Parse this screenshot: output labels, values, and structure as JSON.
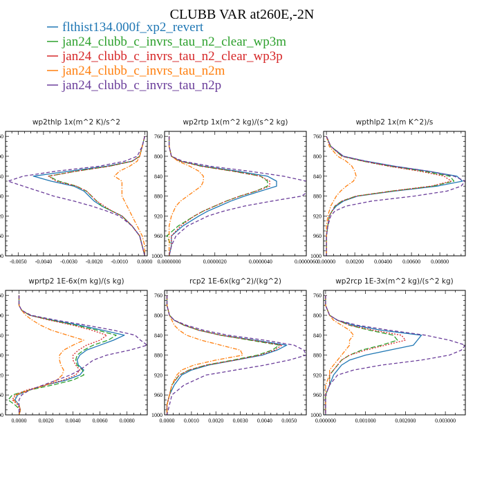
{
  "title": "CLUBB VAR at260E,-2N",
  "legend": [
    {
      "label": "flthist134.000f_xp2_revert",
      "color": "#1f77b4",
      "dash": "solid"
    },
    {
      "label": "jan24_clubb_c_invrs_tau_n2_clear_wp3m",
      "color": "#2ca02c",
      "dash": "longdash"
    },
    {
      "label": "jan24_clubb_c_invrs_tau_n2_clear_wp3p",
      "color": "#d62728",
      "dash": "dot"
    },
    {
      "label": "jan24_clubb_c_invrs_tau_n2m",
      "color": "#ff7f0e",
      "dash": "dashdot"
    },
    {
      "label": "jan24_clubb_c_invrs_tau_n2p",
      "color": "#6a3d9a",
      "dash": "dash"
    }
  ],
  "chart_data": [
    {
      "type": "line",
      "title": "wp2thlp   1x(m^2 K)/s^2",
      "xlim": [
        -0.0055,
        0.0001
      ],
      "ylim": [
        1000,
        750
      ],
      "xticks": [
        "-0.0050",
        "-0.0040",
        "-0.0030",
        "-0.0020",
        "-0.0010",
        "0.0000"
      ],
      "xtick_values": [
        -0.005,
        -0.004,
        -0.003,
        -0.002,
        -0.001,
        0.0
      ],
      "yticks": [
        "760",
        "800",
        "840",
        "880",
        "920",
        "960",
        "1000"
      ],
      "ytick_values": [
        760,
        800,
        840,
        880,
        920,
        960,
        1000
      ],
      "y": [
        760,
        780,
        800,
        810,
        820,
        830,
        840,
        850,
        860,
        870,
        880,
        890,
        900,
        910,
        920,
        940,
        960,
        980,
        1000
      ],
      "series": [
        {
          "values": [
            0,
            -0.0001,
            -0.0002,
            -0.0005,
            -0.0015,
            -0.003,
            -0.0044,
            -0.0037,
            -0.0028,
            -0.0024,
            -0.0022,
            -0.002,
            -0.0017,
            -0.0013,
            -0.0009,
            -0.0005,
            -0.0002,
            -0.0001,
            0
          ]
        },
        {
          "values": [
            0,
            -0.0001,
            -0.0002,
            -0.0005,
            -0.0014,
            -0.0027,
            -0.0038,
            -0.0034,
            -0.0027,
            -0.0023,
            -0.0021,
            -0.0019,
            -0.0017,
            -0.0013,
            -0.0009,
            -0.0005,
            -0.0002,
            -0.0001,
            0
          ]
        },
        {
          "values": [
            0,
            -0.0001,
            -0.0002,
            -0.0005,
            -0.0014,
            -0.0027,
            -0.0038,
            -0.0035,
            -0.0027,
            -0.0023,
            -0.0021,
            -0.0019,
            -0.0016,
            -0.0013,
            -0.0009,
            -0.0005,
            -0.0002,
            -0.0001,
            0
          ]
        },
        {
          "values": [
            0,
            -0.0001,
            -0.0002,
            -0.0003,
            -0.0006,
            -0.001,
            -0.0012,
            -0.0009,
            -0.0009,
            -0.0009,
            -0.0009,
            -0.0008,
            -0.0007,
            -0.0006,
            -0.0005,
            -0.0003,
            -0.0001,
            0,
            0
          ]
        },
        {
          "values": [
            0,
            -0.0001,
            -0.0003,
            -0.0008,
            -0.0018,
            -0.0035,
            -0.0048,
            -0.0054,
            -0.0048,
            -0.0042,
            -0.0036,
            -0.0028,
            -0.0021,
            -0.0015,
            -0.001,
            -0.0005,
            -0.0002,
            -0.0001,
            0
          ]
        }
      ]
    },
    {
      "type": "line",
      "title": "wp2rtp   1x(m^2 kg)/(s^2 kg)",
      "xlim": [
        -2e-07,
        6e-06
      ],
      "ylim": [
        1000,
        750
      ],
      "xticks": [
        "0.0000000",
        "0.0000020",
        "0.0000040",
        "0.0000060"
      ],
      "xtick_values": [
        0.0,
        2e-06,
        4e-06,
        6e-06
      ],
      "yticks": [
        "760",
        "800",
        "840",
        "880",
        "920",
        "960",
        "1000"
      ],
      "ytick_values": [
        760,
        800,
        840,
        880,
        920,
        960,
        1000
      ],
      "y": [
        760,
        780,
        800,
        810,
        820,
        830,
        840,
        850,
        860,
        870,
        880,
        890,
        900,
        910,
        920,
        940,
        960,
        980,
        1000
      ],
      "series": [
        {
          "values": [
            0,
            0,
            1e-07,
            5e-07,
            1.5e-06,
            3e-06,
            4.3e-06,
            4.7e-06,
            4.7e-06,
            4e-06,
            3.3e-06,
            2.7e-06,
            2.2e-06,
            1.7e-06,
            1.3e-06,
            6e-07,
            1e-07,
            1e-07,
            0
          ]
        },
        {
          "values": [
            0,
            0,
            1e-07,
            5e-07,
            1.4e-06,
            2.8e-06,
            4e-06,
            4.3e-06,
            4.3e-06,
            3.8e-06,
            3.1e-06,
            2.5e-06,
            2e-06,
            1.5e-06,
            1.1e-06,
            4e-07,
            -1e-07,
            1e-07,
            0
          ]
        },
        {
          "values": [
            0,
            0,
            1e-07,
            5e-07,
            1.4e-06,
            2.8e-06,
            4e-06,
            4.4e-06,
            4.4e-06,
            3.8e-06,
            3.1e-06,
            2.5e-06,
            2e-06,
            1.5e-06,
            1.1e-06,
            5e-07,
            1e-07,
            1e-07,
            0
          ]
        },
        {
          "values": [
            0,
            0,
            1e-07,
            4e-07,
            9e-07,
            1.3e-06,
            1.5e-06,
            1.5e-06,
            1.4e-06,
            1.1e-06,
            8e-07,
            5e-07,
            3e-07,
            2e-07,
            1e-07,
            0,
            0,
            0,
            0
          ]
        },
        {
          "values": [
            0,
            0,
            1e-07,
            6e-07,
            1.8e-06,
            3.5e-06,
            5e-06,
            6e-06,
            6.3e-06,
            6.1e-06,
            5.8e-06,
            4.5e-06,
            3.3e-06,
            2.4e-06,
            1.7e-06,
            8e-07,
            3e-07,
            1e-07,
            0
          ]
        }
      ]
    },
    {
      "type": "line",
      "title": "wpthlp2   1x(m K^2)/s",
      "xlim": [
        -0.0002,
        0.0098
      ],
      "ylim": [
        1000,
        750
      ],
      "xticks": [
        "0.00000",
        "0.00200",
        "0.00400",
        "0.00600",
        "0.00800"
      ],
      "xtick_values": [
        0.0,
        0.002,
        0.004,
        0.006,
        0.008
      ],
      "yticks": [
        "760",
        "800",
        "840",
        "880",
        "920",
        "960",
        "1000"
      ],
      "ytick_values": [
        760,
        800,
        840,
        880,
        920,
        960,
        1000
      ],
      "y": [
        760,
        780,
        800,
        810,
        820,
        830,
        840,
        850,
        860,
        870,
        880,
        890,
        900,
        910,
        920,
        940,
        960,
        980,
        1000
      ],
      "series": [
        {
          "values": [
            0,
            0.0003,
            0.0012,
            0.0028,
            0.0048,
            0.0072,
            0.0092,
            0.0096,
            0.0078,
            0.0048,
            0.0022,
            0.0012,
            0.0007,
            0.0004,
            0.0002,
            0.0001,
            0,
            0,
            0
          ]
        },
        {
          "values": [
            0,
            0.0003,
            0.0011,
            0.0026,
            0.0045,
            0.0068,
            0.0087,
            0.009,
            0.0075,
            0.0046,
            0.0021,
            0.0011,
            0.0006,
            0.0004,
            0.0002,
            0.0001,
            0,
            0,
            0
          ]
        },
        {
          "values": [
            0,
            0.0003,
            0.0011,
            0.0026,
            0.0044,
            0.0066,
            0.0083,
            0.0088,
            0.0074,
            0.0046,
            0.0021,
            0.0011,
            0.0006,
            0.0004,
            0.0002,
            0.0001,
            0,
            0,
            0
          ]
        },
        {
          "values": [
            0,
            0.0002,
            0.0008,
            0.0014,
            0.0018,
            0.002,
            0.0021,
            0.0019,
            0.0014,
            0.001,
            0.0007,
            0.0005,
            0.0003,
            0.0002,
            0.0001,
            0,
            0,
            0,
            0
          ]
        },
        {
          "values": [
            0,
            0.0003,
            0.0012,
            0.0028,
            0.0048,
            0.0072,
            0.009,
            0.0098,
            0.0095,
            0.0085,
            0.0062,
            0.0032,
            0.0014,
            0.0006,
            0.0003,
            0.0001,
            0,
            0,
            0
          ]
        }
      ]
    },
    {
      "type": "line",
      "title": "wprtp2   1E-6x(m kg)/(s kg)",
      "xlim": [
        -0.001,
        0.0095
      ],
      "ylim": [
        1000,
        750
      ],
      "xticks": [
        "0.0000",
        "0.0020",
        "0.0040",
        "0.0060",
        "0.0080"
      ],
      "xtick_values": [
        0.0,
        0.002,
        0.004,
        0.006,
        0.008
      ],
      "yticks": [
        "760",
        "800",
        "840",
        "880",
        "920",
        "960",
        "1000"
      ],
      "ytick_values": [
        760,
        800,
        840,
        880,
        920,
        960,
        1000
      ],
      "y": [
        760,
        780,
        790,
        800,
        810,
        820,
        830,
        840,
        850,
        860,
        870,
        880,
        890,
        900,
        910,
        920,
        930,
        940,
        950,
        960,
        970,
        980,
        990,
        1000
      ],
      "series": [
        {
          "values": [
            0,
            0,
            0.0002,
            0.0008,
            0.0025,
            0.0045,
            0.0062,
            0.0078,
            0.007,
            0.006,
            0.005,
            0.0045,
            0.0043,
            0.0044,
            0.0048,
            0.0045,
            0.0035,
            0.002,
            0.0008,
            -0.0001,
            -0.0003,
            0,
            0.0001,
            0
          ]
        },
        {
          "values": [
            0,
            0,
            0.0002,
            0.0008,
            0.0024,
            0.0042,
            0.0058,
            0.0072,
            0.0066,
            0.0055,
            0.0048,
            0.0043,
            0.0042,
            0.0043,
            0.0047,
            0.0048,
            0.004,
            0.0025,
            0.0008,
            -0.0005,
            -0.0008,
            -0.0003,
            0.0001,
            0
          ]
        },
        {
          "values": [
            0,
            0,
            0.0002,
            0.0008,
            0.0023,
            0.004,
            0.0054,
            0.0065,
            0.006,
            0.005,
            0.0044,
            0.004,
            0.004,
            0.0042,
            0.0045,
            0.0042,
            0.0033,
            0.002,
            0.0006,
            -0.0003,
            -0.0005,
            -0.0001,
            0.0001,
            0
          ]
        },
        {
          "values": [
            0,
            0,
            0.0002,
            0.0005,
            0.001,
            0.0016,
            0.0024,
            0.0036,
            0.0048,
            0.004,
            0.0033,
            0.003,
            0.003,
            0.0031,
            0.0033,
            0.0032,
            0.0028,
            0.002,
            0.0008,
            -0.0002,
            -0.0004,
            0,
            0.0001,
            0
          ]
        },
        {
          "values": [
            0,
            0,
            0.0002,
            0.0009,
            0.0028,
            0.005,
            0.007,
            0.0086,
            0.009,
            0.0095,
            0.0082,
            0.0065,
            0.0055,
            0.005,
            0.0045,
            0.0038,
            0.0028,
            0.0018,
            0.0008,
            0.0002,
            0,
            0,
            0,
            0
          ]
        }
      ]
    },
    {
      "type": "line",
      "title": "rcp2   1E-6x(kg^2)/(kg^2)",
      "xlim": [
        -0.0001,
        0.0057
      ],
      "ylim": [
        1000,
        750
      ],
      "xticks": [
        "0.0000",
        "0.0010",
        "0.0020",
        "0.0030",
        "0.0040",
        "0.0050"
      ],
      "xtick_values": [
        0.0,
        0.001,
        0.002,
        0.003,
        0.004,
        0.005
      ],
      "yticks": [
        "760",
        "800",
        "840",
        "880",
        "920",
        "960",
        "1000"
      ],
      "ytick_values": [
        760,
        800,
        840,
        880,
        920,
        960,
        1000
      ],
      "y": [
        760,
        780,
        800,
        810,
        820,
        830,
        840,
        850,
        860,
        870,
        880,
        890,
        900,
        910,
        920,
        940,
        960,
        980,
        1000
      ],
      "series": [
        {
          "values": [
            0,
            0,
            0.0001,
            0.0003,
            0.0007,
            0.0013,
            0.0022,
            0.0036,
            0.0049,
            0.0045,
            0.0039,
            0.0028,
            0.0017,
            0.001,
            0.0006,
            0.0003,
            0.0001,
            0,
            0
          ]
        },
        {
          "values": [
            0,
            0,
            0.0001,
            0.0003,
            0.0007,
            0.0013,
            0.0022,
            0.0034,
            0.0046,
            0.0043,
            0.0037,
            0.0027,
            0.0016,
            0.0009,
            0.0005,
            0.0002,
            0.0001,
            0,
            0
          ]
        },
        {
          "values": [
            0,
            0,
            0.0001,
            0.0003,
            0.0007,
            0.0013,
            0.0022,
            0.0035,
            0.0047,
            0.0044,
            0.0038,
            0.0028,
            0.0016,
            0.0009,
            0.0005,
            0.0002,
            0.0001,
            0,
            0
          ]
        },
        {
          "values": [
            0,
            0,
            0.0001,
            0.0002,
            0.0003,
            0.0005,
            0.0008,
            0.0014,
            0.0022,
            0.003,
            0.0031,
            0.002,
            0.0011,
            0.0006,
            0.0004,
            0.0002,
            0.0001,
            0,
            0
          ]
        },
        {
          "values": [
            0,
            0,
            0.0001,
            0.0003,
            0.0008,
            0.0015,
            0.0025,
            0.004,
            0.0052,
            0.0056,
            0.0057,
            0.005,
            0.004,
            0.0028,
            0.0016,
            0.0007,
            0.0002,
            0.0001,
            0
          ]
        }
      ]
    },
    {
      "type": "line",
      "title": "wp2rcp   1E-3x(m^2 kg)/(s^2 kg)",
      "xlim": [
        -5e-05,
        0.0035
      ],
      "ylim": [
        1000,
        750
      ],
      "xticks": [
        "0.000000",
        "0.001000",
        "0.002000",
        "0.003000"
      ],
      "xtick_values": [
        0.0,
        0.001,
        0.002,
        0.003
      ],
      "yticks": [
        "760",
        "800",
        "840",
        "880",
        "920",
        "960",
        "1000"
      ],
      "ytick_values": [
        760,
        800,
        840,
        880,
        920,
        960,
        1000
      ],
      "y": [
        760,
        780,
        800,
        810,
        820,
        830,
        840,
        850,
        860,
        870,
        880,
        890,
        900,
        910,
        920,
        940,
        960,
        980,
        1000
      ],
      "series": [
        {
          "values": [
            0,
            0,
            0.0001,
            0.0003,
            0.0007,
            0.0014,
            0.0024,
            0.0023,
            0.0022,
            0.0016,
            0.001,
            0.0006,
            0.0004,
            0.0003,
            0.0002,
            0.0001,
            0,
            0,
            0
          ]
        },
        {
          "values": [
            0,
            0,
            0.0001,
            0.0003,
            0.0006,
            0.0011,
            0.0017,
            0.0018,
            0.0014,
            0.0009,
            0.0006,
            0.0004,
            0.0003,
            0.0002,
            0.0001,
            0.0001,
            0,
            0,
            0
          ]
        },
        {
          "values": [
            0,
            0,
            0.0001,
            0.0003,
            0.0006,
            0.0012,
            0.0019,
            0.002,
            0.0015,
            0.001,
            0.0006,
            0.0004,
            0.0003,
            0.0002,
            0.0001,
            0.0001,
            0,
            0,
            0
          ]
        },
        {
          "values": [
            0,
            0,
            0.0001,
            0.0002,
            0.0004,
            0.0006,
            0.0007,
            0.0006,
            0.0006,
            0.0005,
            0.0004,
            0.0003,
            0.0002,
            0.0001,
            0.0001,
            0,
            0,
            0,
            0
          ]
        },
        {
          "values": [
            0,
            0,
            0.0001,
            0.0003,
            0.0008,
            0.0016,
            0.0025,
            0.0031,
            0.0035,
            0.0034,
            0.0031,
            0.0024,
            0.0014,
            0.0007,
            0.0003,
            0.0001,
            0,
            0,
            0
          ]
        }
      ]
    }
  ]
}
